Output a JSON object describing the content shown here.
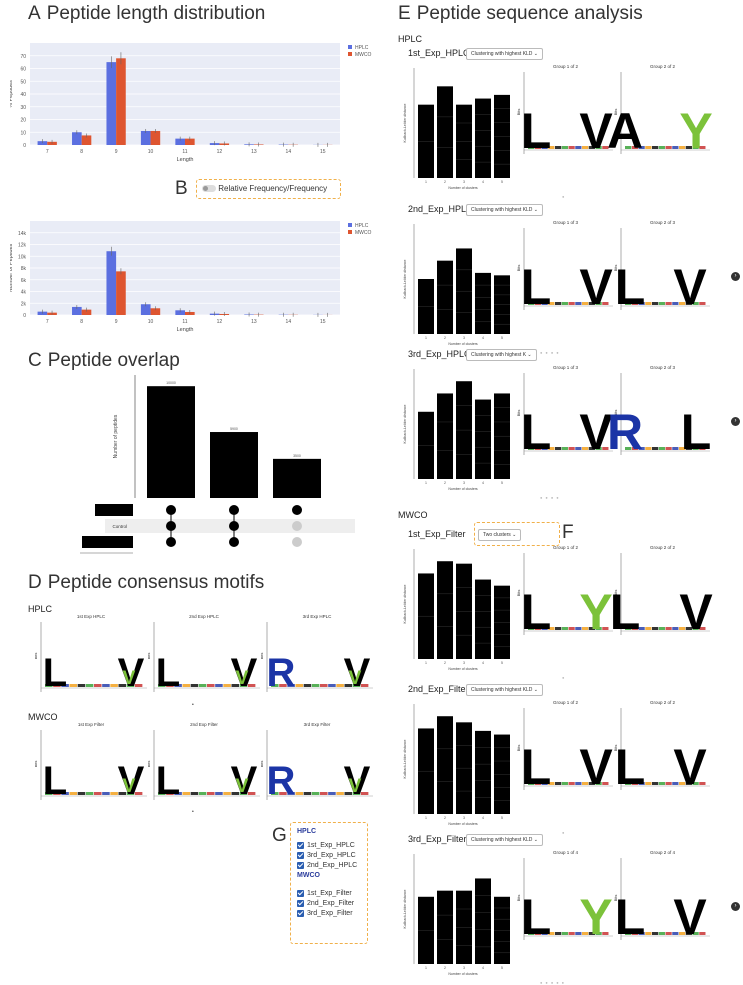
{
  "panels": {
    "A": {
      "letter": "A",
      "title": "Peptide length distribution"
    },
    "B": {
      "letter": "B",
      "toggle_label": "Relative Frequency/Frequency"
    },
    "C": {
      "letter": "C",
      "title": "Peptide overlap"
    },
    "D": {
      "letter": "D",
      "title": "Peptide consensus motifs"
    },
    "E": {
      "letter": "E",
      "title": "Peptide sequence analysis"
    },
    "F": {
      "letter": "F"
    },
    "G": {
      "letter": "G"
    }
  },
  "colors": {
    "hplc": "#5b6fe0",
    "mwco": "#de5530",
    "plot_bg": "#e9ecf6",
    "highlight": "#f0b04a",
    "checkbox": "#2a5db0"
  },
  "chart_data": [
    {
      "type": "bar",
      "categories": [
        "7",
        "8",
        "9",
        "10",
        "11",
        "12",
        "13",
        "14",
        "15"
      ],
      "series": [
        {
          "name": "HPLC",
          "values": [
            3,
            10,
            65,
            11,
            5,
            1.5,
            0.5,
            0.3,
            0.1
          ]
        },
        {
          "name": "MWCO",
          "values": [
            2.5,
            7.5,
            68,
            11,
            5,
            1.2,
            0.4,
            0.2,
            0.1
          ]
        }
      ],
      "xlabel": "Length",
      "ylabel": "% Peptides",
      "ylim": [
        0,
        80
      ],
      "yticks": [
        "0",
        "10",
        "20",
        "30",
        "40",
        "50",
        "60",
        "70"
      ],
      "legend": "top-right"
    },
    {
      "type": "bar",
      "categories": [
        "7",
        "8",
        "9",
        "10",
        "11",
        "12",
        "13",
        "14",
        "15"
      ],
      "series": [
        {
          "name": "HPLC",
          "values": [
            500,
            1200,
            9500,
            1600,
            700,
            200,
            70,
            40,
            20
          ]
        },
        {
          "name": "MWCO",
          "values": [
            350,
            800,
            6500,
            1000,
            450,
            150,
            50,
            30,
            10
          ]
        }
      ],
      "xlabel": "Length",
      "ylabel": "Number of Peptides",
      "ylim": [
        0,
        14000
      ],
      "yticks": [
        "0",
        "2k",
        "4k",
        "6k",
        "8k",
        "10k",
        "12k",
        "14k"
      ],
      "legend": "top-right"
    },
    {
      "type": "bar",
      "categories": [
        "MWCO+Control+HPLC",
        "MWCO+Control",
        "MWCO"
      ],
      "values": [
        10000,
        5900,
        3500
      ],
      "ylabel": "Number of peptides",
      "set_labels": [
        "MWCO",
        "Control",
        "HPLC"
      ]
    }
  ],
  "motifs_D": {
    "hplc_label": "HPLC",
    "mwco_label": "MWCO",
    "hplc": [
      "1st Exp HPLC",
      "2nd Exp HPLC",
      "3rd Exp HPLC"
    ],
    "mwco": [
      "1st Exp Filter",
      "2nd Exp Filter",
      "3rd Exp Filter"
    ],
    "ylabel": "Bits"
  },
  "E": {
    "hplc_label": "HPLC",
    "mwco_label": "MWCO",
    "xlabel": "Number of clusters",
    "ylabel": "Kullback-Leibler distance",
    "experiments": [
      {
        "label": "1st_Exp_HPLC",
        "dropdown": "Clustering with highest KLD",
        "group_left": "Group 1 of 2",
        "group_right": "Group 2 of 2"
      },
      {
        "label": "2nd_Exp_HPLC",
        "dropdown": "Clustering with highest KLD",
        "group_left": "Group 1 of 3",
        "group_right": "Group 2 of 3"
      },
      {
        "label": "3rd_Exp_HPLC",
        "dropdown": "Clustering with highest K",
        "group_left": "Group 1 of 3",
        "group_right": "Group 2 of 3"
      },
      {
        "label": "1st_Exp_Filter",
        "dropdown": "Two clusters",
        "group_left": "Group 1 of 2",
        "group_right": "Group 2 of 2"
      },
      {
        "label": "2nd_Exp_Filter",
        "dropdown": "Clustering with highest KLD",
        "group_left": "Group 1 of 2",
        "group_right": "Group 2 of 2"
      },
      {
        "label": "3rd_Exp_Filter",
        "dropdown": "Clustering with highest KLD",
        "group_left": "Group 1 of 4",
        "group_right": "Group 2 of 4"
      }
    ]
  },
  "G": {
    "hplc_header": "HPLC",
    "mwco_header": "MWCO",
    "hplc_items": [
      "1st_Exp_HPLC",
      "3rd_Exp_HPLC",
      "2nd_Exp_HPLC"
    ],
    "mwco_items": [
      "1st_Exp_Filter",
      "2nd_Exp_Filter",
      "3rd_Exp_Filter"
    ]
  }
}
